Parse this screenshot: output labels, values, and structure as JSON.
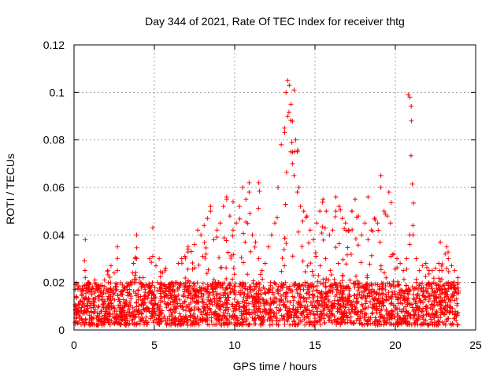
{
  "chart_data": {
    "type": "scatter",
    "title": "Day 344 of 2021, Rate Of TEC Index for receiver thtg",
    "xlabel": "GPS time / hours",
    "ylabel": "ROTI / TECUs",
    "xlim": [
      0,
      25
    ],
    "ylim": [
      0,
      0.12
    ],
    "xticks": [
      "0",
      "5",
      "10",
      "15",
      "20",
      "25"
    ],
    "yticks": [
      "0",
      "0.02",
      "0.04",
      "0.06",
      "0.08",
      "0.1",
      "0.12"
    ],
    "grid": true,
    "marker": "plus",
    "color": "#ff0000",
    "x": [
      0.1,
      0.3,
      0.5,
      0.7,
      0.9,
      1.1,
      1.3,
      1.5,
      1.7,
      1.9,
      2.1,
      2.3,
      2.5,
      2.7,
      2.9,
      3.1,
      3.3,
      3.5,
      3.7,
      3.9,
      4.1,
      4.3,
      4.5,
      4.7,
      4.9,
      5.1,
      5.3,
      5.5,
      5.7,
      5.9,
      6.1,
      6.3,
      6.5,
      6.7,
      6.9,
      7.1,
      7.3,
      7.5,
      7.7,
      7.9,
      8.1,
      8.3,
      8.5,
      8.7,
      8.9,
      9.1,
      9.3,
      9.5,
      9.7,
      9.9,
      10.1,
      10.3,
      10.5,
      10.7,
      10.9,
      11.1,
      11.3,
      11.5,
      11.7,
      11.9,
      12.1,
      12.3,
      12.5,
      12.7,
      12.9,
      13.1,
      13.3,
      13.5,
      13.7,
      13.9,
      14.1,
      14.3,
      14.5,
      14.7,
      14.9,
      15.1,
      15.3,
      15.5,
      15.7,
      15.9,
      16.1,
      16.3,
      16.5,
      16.7,
      16.9,
      17.1,
      17.3,
      17.5,
      17.7,
      17.9,
      18.1,
      18.3,
      18.5,
      18.7,
      18.9,
      19.1,
      19.3,
      19.5,
      19.7,
      19.9,
      20.1,
      20.3,
      20.5,
      20.7,
      20.9,
      21.1,
      21.3,
      21.5,
      21.7,
      21.9,
      22.1,
      22.3,
      22.5,
      22.7,
      22.9,
      23.1,
      23.3,
      23.5,
      23.7,
      23.9,
      0.7,
      2.7,
      3.9,
      4.9,
      8.5,
      9.5,
      9.9,
      10.9,
      11.5,
      13.2,
      13.3,
      13.4,
      13.5,
      13.6,
      13.7,
      13.8,
      13.9,
      14.0,
      16.3,
      17.3,
      18.3,
      19.1,
      19.6,
      20.8,
      20.9,
      21.0,
      21.1,
      22.8,
      23.2
    ],
    "y": [
      0.019,
      0.018,
      0.017,
      0.022,
      0.02,
      0.017,
      0.021,
      0.018,
      0.016,
      0.021,
      0.025,
      0.027,
      0.024,
      0.025,
      0.016,
      0.018,
      0.017,
      0.02,
      0.028,
      0.03,
      0.022,
      0.022,
      0.019,
      0.03,
      0.031,
      0.027,
      0.03,
      0.024,
      0.026,
      0.018,
      0.017,
      0.02,
      0.028,
      0.03,
      0.031,
      0.035,
      0.033,
      0.036,
      0.042,
      0.04,
      0.044,
      0.047,
      0.05,
      0.038,
      0.042,
      0.045,
      0.052,
      0.055,
      0.048,
      0.042,
      0.045,
      0.052,
      0.06,
      0.055,
      0.058,
      0.04,
      0.037,
      0.03,
      0.025,
      0.028,
      0.035,
      0.04,
      0.045,
      0.06,
      0.078,
      0.085,
      0.09,
      0.075,
      0.065,
      0.058,
      0.052,
      0.05,
      0.048,
      0.042,
      0.038,
      0.045,
      0.05,
      0.055,
      0.05,
      0.04,
      0.042,
      0.05,
      0.052,
      0.047,
      0.045,
      0.042,
      0.05,
      0.055,
      0.048,
      0.04,
      0.045,
      0.038,
      0.042,
      0.047,
      0.045,
      0.06,
      0.05,
      0.048,
      0.045,
      0.032,
      0.03,
      0.028,
      0.025,
      0.03,
      0.036,
      0.04,
      0.03,
      0.025,
      0.027,
      0.028,
      0.025,
      0.025,
      0.026,
      0.028,
      0.025,
      0.032,
      0.03,
      0.027,
      0.025,
      0.022,
      0.038,
      0.035,
      0.04,
      0.043,
      0.052,
      0.056,
      0.054,
      0.062,
      0.062,
      0.1,
      0.105,
      0.103,
      0.095,
      0.07,
      0.101,
      0.08,
      0.075,
      0.06,
      0.056,
      0.05,
      0.056,
      0.065,
      0.058,
      0.099,
      0.098,
      0.088,
      0.044,
      0.037,
      0.035
    ],
    "baseline": {
      "min": 0.002,
      "typical_max": 0.02
    }
  }
}
